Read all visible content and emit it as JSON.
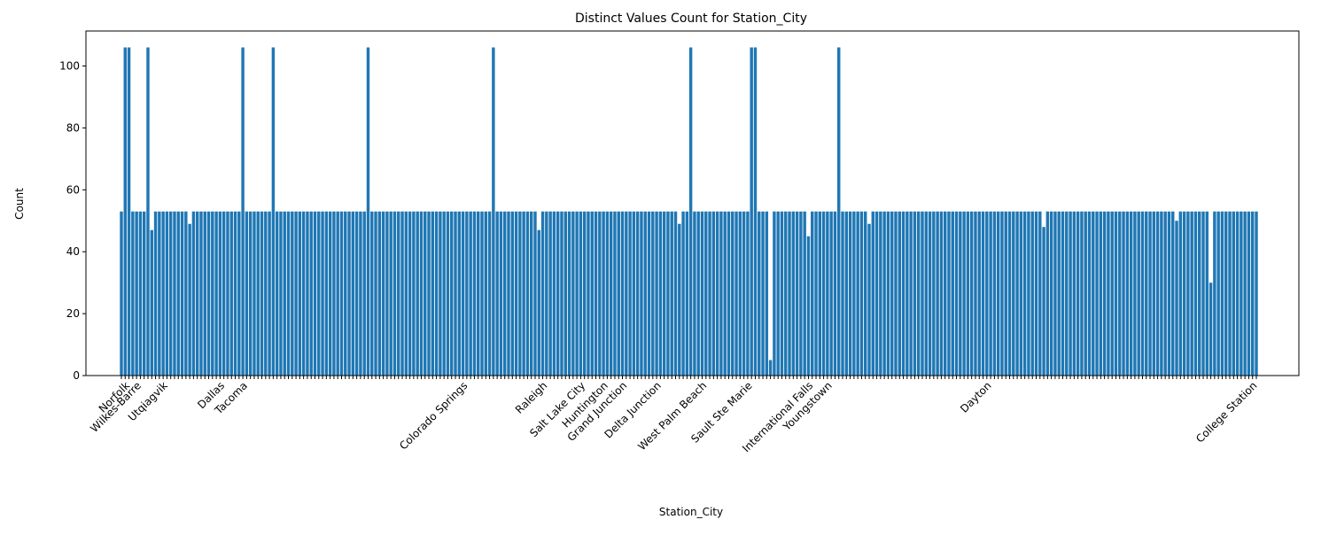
{
  "chart_data": {
    "type": "bar",
    "title": "Distinct Values Count for Station_City",
    "x_label": "Station_City",
    "y_label": "Count",
    "color": "#1f77b4",
    "categories": [
      "Norfolk",
      null,
      null,
      "Wilkes-Barre",
      null,
      null,
      null,
      null,
      null,
      null,
      "Utqiagvik",
      null,
      null,
      null,
      null,
      null,
      null,
      null,
      null,
      null,
      null,
      null,
      null,
      null,
      null,
      "Dallas",
      null,
      null,
      null,
      null,
      null,
      "Tacoma",
      null,
      null,
      null,
      null,
      null,
      null,
      null,
      null,
      null,
      null,
      null,
      null,
      null,
      null,
      null,
      null,
      null,
      null,
      null,
      null,
      null,
      null,
      null,
      null,
      null,
      null,
      null,
      null,
      null,
      null,
      null,
      null,
      null,
      null,
      null,
      null,
      null,
      null,
      null,
      null,
      null,
      null,
      null,
      null,
      null,
      null,
      null,
      null,
      null,
      null,
      null,
      null,
      null,
      null,
      null,
      null,
      null,
      "Colorado Springs",
      null,
      null,
      null,
      null,
      null,
      null,
      null,
      null,
      null,
      null,
      null,
      null,
      null,
      null,
      null,
      null,
      null,
      null,
      null,
      null,
      "Raleigh",
      null,
      null,
      null,
      null,
      null,
      null,
      null,
      null,
      null,
      "Salt Lake City",
      null,
      null,
      null,
      null,
      null,
      "Huntington",
      null,
      null,
      null,
      null,
      "Grand Junction",
      null,
      null,
      null,
      null,
      null,
      null,
      null,
      null,
      "Delta Junction",
      null,
      null,
      null,
      null,
      null,
      null,
      null,
      null,
      null,
      null,
      null,
      "West Palm Beach",
      null,
      null,
      null,
      null,
      null,
      null,
      null,
      null,
      null,
      null,
      null,
      "Sault Ste Marie",
      null,
      null,
      null,
      null,
      null,
      null,
      null,
      null,
      null,
      null,
      null,
      null,
      null,
      null,
      null,
      "International Falls",
      null,
      null,
      null,
      null,
      "Youngstown",
      null,
      null,
      null,
      null,
      null,
      null,
      null,
      null,
      null,
      null,
      null,
      null,
      null,
      null,
      null,
      null,
      null,
      null,
      null,
      null,
      null,
      null,
      null,
      null,
      null,
      null,
      null,
      null,
      null,
      null,
      null,
      null,
      null,
      null,
      null,
      null,
      null,
      null,
      null,
      null,
      null,
      "Dayton",
      null,
      null,
      null,
      null,
      null,
      null,
      null,
      null,
      null,
      null,
      null,
      null,
      null,
      null,
      null,
      null,
      null,
      null,
      null,
      null,
      null,
      null,
      null,
      null,
      null,
      null,
      null,
      null,
      null,
      null,
      null,
      null,
      null,
      null,
      null,
      null,
      null,
      null,
      null,
      null,
      null,
      null,
      null,
      null,
      null,
      null,
      null,
      null,
      null,
      null,
      null,
      null,
      null,
      null,
      null,
      null,
      null,
      null,
      null,
      null,
      null,
      null,
      null,
      null,
      null,
      null,
      null,
      null,
      null,
      "College Station",
      null,
      null
    ],
    "values": [
      53,
      106,
      106,
      53,
      53,
      53,
      53,
      106,
      47,
      53,
      53,
      53,
      53,
      53,
      53,
      53,
      53,
      53,
      49,
      53,
      53,
      53,
      53,
      53,
      53,
      53,
      53,
      53,
      53,
      53,
      53,
      53,
      106,
      53,
      53,
      53,
      53,
      53,
      53,
      53,
      106,
      53,
      53,
      53,
      53,
      53,
      53,
      53,
      53,
      53,
      53,
      53,
      53,
      53,
      53,
      53,
      53,
      53,
      53,
      53,
      53,
      53,
      53,
      53,
      53,
      106,
      53,
      53,
      53,
      53,
      53,
      53,
      53,
      53,
      53,
      53,
      53,
      53,
      53,
      53,
      53,
      53,
      53,
      53,
      53,
      53,
      53,
      53,
      53,
      53,
      53,
      53,
      53,
      53,
      53,
      53,
      53,
      53,
      106,
      53,
      53,
      53,
      53,
      53,
      53,
      53,
      53,
      53,
      53,
      53,
      47,
      53,
      53,
      53,
      53,
      53,
      53,
      53,
      53,
      53,
      53,
      53,
      53,
      53,
      53,
      53,
      53,
      53,
      53,
      53,
      53,
      53,
      53,
      53,
      53,
      53,
      53,
      53,
      53,
      53,
      53,
      53,
      53,
      53,
      53,
      53,
      53,
      49,
      53,
      53,
      106,
      53,
      53,
      53,
      53,
      53,
      53,
      53,
      53,
      53,
      53,
      53,
      53,
      53,
      53,
      53,
      106,
      106,
      53,
      53,
      53,
      5,
      53,
      53,
      53,
      53,
      53,
      53,
      53,
      53,
      53,
      45,
      53,
      53,
      53,
      53,
      53,
      53,
      53,
      106,
      53,
      53,
      53,
      53,
      53,
      53,
      53,
      49,
      53,
      53,
      53,
      53,
      53,
      53,
      53,
      53,
      53,
      53,
      53,
      53,
      53,
      53,
      53,
      53,
      53,
      53,
      53,
      53,
      53,
      53,
      53,
      53,
      53,
      53,
      53,
      53,
      53,
      53,
      53,
      53,
      53,
      53,
      53,
      53,
      53,
      53,
      53,
      53,
      53,
      53,
      53,
      53,
      53,
      48,
      53,
      53,
      53,
      53,
      53,
      53,
      53,
      53,
      53,
      53,
      53,
      53,
      53,
      53,
      53,
      53,
      53,
      53,
      53,
      53,
      53,
      53,
      53,
      53,
      53,
      53,
      53,
      53,
      53,
      53,
      53,
      53,
      53,
      53,
      50,
      53,
      53,
      53,
      53,
      53,
      53,
      53,
      53,
      30,
      53,
      53,
      53,
      53,
      53,
      53,
      53,
      53,
      53,
      53,
      53,
      53
    ],
    "ylim": [
      0,
      111.3
    ],
    "yticks": [
      0,
      20,
      40,
      60,
      80,
      100
    ]
  }
}
